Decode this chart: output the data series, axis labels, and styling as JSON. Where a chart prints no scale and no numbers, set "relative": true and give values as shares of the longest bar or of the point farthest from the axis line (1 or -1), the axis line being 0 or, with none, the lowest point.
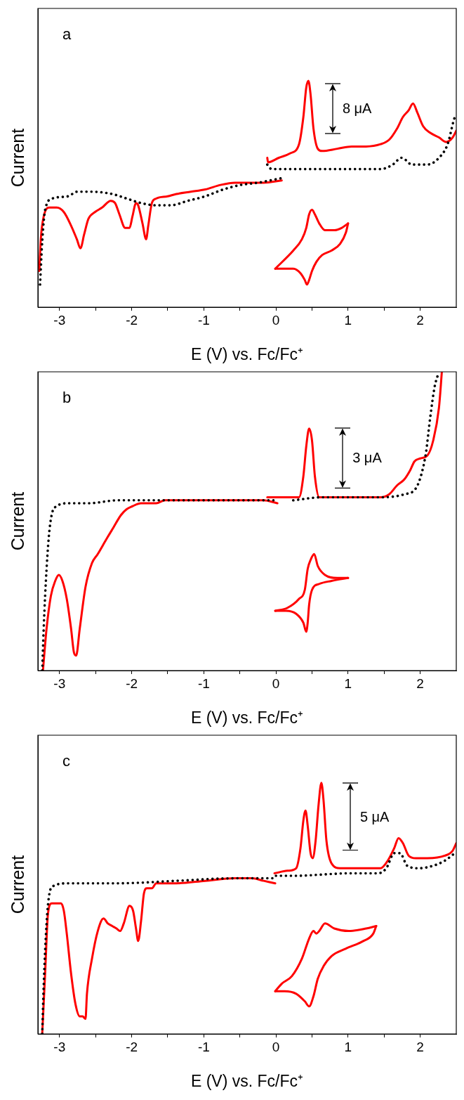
{
  "chart_data": [
    {
      "type": "line",
      "title": "a",
      "xlabel": "E (V) vs. Fc/Fc⁺",
      "ylabel": "Current",
      "relative": true,
      "marker": "none",
      "xlim": [
        -3.3,
        2.5
      ],
      "xticks": [
        -3,
        {
          "value": -2.5,
          "label": null
        },
        -2,
        {
          "value": -1.5,
          "label": null
        },
        -1,
        {
          "value": -0.5,
          "label": null
        },
        0,
        {
          "value": 0.5,
          "label": null
        },
        1,
        {
          "value": 1.5,
          "label": null
        },
        2
      ],
      "annotations": [
        "8 μA"
      ],
      "series": [
        {
          "color": "#000000",
          "line_style": "dotted",
          "x": [
            -3.27,
            -3.24,
            -3.2,
            -3.1,
            -2.88,
            -2.76,
            -2.55,
            -2.27,
            -2.07,
            -1.87,
            -1.66,
            -1.46,
            -1.22,
            -0.98,
            -0.73,
            -0.49,
            -0.25,
            0.08
          ],
          "values": [
            0.1,
            0.29,
            0.43,
            0.48,
            0.49,
            0.51,
            0.51,
            0.5,
            0.48,
            0.46,
            0.45,
            0.45,
            0.47,
            0.49,
            0.52,
            0.54,
            0.55,
            0.57
          ]
        },
        {
          "color": "#000000",
          "line_style": "dotted",
          "x": [
            -0.12,
            -0.06,
            0.24,
            0.64,
            1.05,
            1.45,
            1.62,
            1.74,
            1.8,
            1.88,
            2.1,
            2.26,
            2.38,
            2.46,
            2.49
          ],
          "values": [
            0.63,
            0.61,
            0.61,
            0.61,
            0.61,
            0.61,
            0.63,
            0.66,
            0.65,
            0.63,
            0.63,
            0.66,
            0.72,
            0.82,
            0.85
          ]
        },
        {
          "color": "#ff0000",
          "line_style": "solid",
          "x": [
            -3.28,
            -3.26,
            -3.22,
            -3.14,
            -3.04,
            -2.94,
            -2.84,
            -2.76,
            -2.71,
            -2.66,
            -2.6,
            -2.51,
            -2.41,
            -2.29,
            -2.23,
            -2.17,
            -2.09,
            -2.03,
            -1.99,
            -1.94,
            -1.91,
            -1.85,
            -1.8,
            -1.77,
            -1.72,
            -1.66,
            -1.5,
            -1.38,
            -1.18,
            -0.98,
            -0.77,
            -0.57,
            -0.37,
            -0.17,
            0.08
          ],
          "values": [
            0.16,
            0.3,
            0.4,
            0.44,
            0.44,
            0.42,
            0.36,
            0.3,
            0.26,
            0.32,
            0.39,
            0.42,
            0.44,
            0.47,
            0.46,
            0.41,
            0.35,
            0.35,
            0.4,
            0.46,
            0.45,
            0.37,
            0.3,
            0.36,
            0.46,
            0.48,
            0.49,
            0.5,
            0.51,
            0.52,
            0.54,
            0.55,
            0.55,
            0.55,
            0.56
          ]
        },
        {
          "color": "#ff0000",
          "line_style": "solid",
          "x": [
            -0.12,
            -0.11,
            0.04,
            0.2,
            0.32,
            0.38,
            0.42,
            0.45,
            0.48,
            0.52,
            0.58,
            0.64,
            0.85,
            1.05,
            1.25,
            1.45,
            1.57,
            1.68,
            1.76,
            1.84,
            1.9,
            1.96,
            2.04,
            2.14,
            2.26,
            2.36,
            2.45,
            2.5
          ],
          "values": [
            0.66,
            0.64,
            0.66,
            0.68,
            0.72,
            0.84,
            0.97,
            1,
            0.94,
            0.79,
            0.7,
            0.69,
            0.7,
            0.71,
            0.71,
            0.72,
            0.74,
            0.79,
            0.84,
            0.87,
            0.9,
            0.86,
            0.8,
            0.77,
            0.75,
            0.73,
            0.75,
            0.78
          ]
        },
        {
          "color": "#ff0000",
          "line_style": "solid",
          "x": [
            -0.01,
            0.24,
            0.36,
            0.42,
            0.46,
            0.5,
            0.54,
            0.6,
            0.68,
            0.81,
            0.91,
            1
          ],
          "values": [
            0.17,
            0.25,
            0.3,
            0.35,
            0.41,
            0.43,
            0.41,
            0.37,
            0.34,
            0.34,
            0.35,
            0.37
          ]
        },
        {
          "color": "#ff0000",
          "line_style": "solid",
          "x": [
            -0.01,
            0.12,
            0.24,
            0.34,
            0.4,
            0.43,
            0.46,
            0.5,
            0.56,
            0.64,
            0.77,
            0.89,
            0.97,
            1
          ],
          "values": [
            0.17,
            0.17,
            0.17,
            0.15,
            0.12,
            0.1,
            0.12,
            0.16,
            0.2,
            0.23,
            0.25,
            0.28,
            0.33,
            0.37
          ]
        }
      ]
    },
    {
      "type": "line",
      "title": "b",
      "xlabel": "E (V) vs. Fc/Fc⁺",
      "ylabel": "Current",
      "relative": true,
      "marker": "none",
      "xlim": [
        -3.3,
        2.5
      ],
      "xticks": [
        -3,
        {
          "value": -2.5,
          "label": null
        },
        -2,
        {
          "value": -1.5,
          "label": null
        },
        -1,
        {
          "value": -0.5,
          "label": null
        },
        0,
        {
          "value": 0.5,
          "label": null
        },
        1,
        {
          "value": 1.5,
          "label": null
        },
        2
      ],
      "annotations": [
        "3 μA"
      ],
      "series": [
        {
          "color": "#000000",
          "line_style": "dotted",
          "x": [
            -3.24,
            -3.22,
            -3.18,
            -3.14,
            -3.1,
            -3.04,
            -2.88,
            -2.6,
            -2.19,
            -1.79,
            -0.98,
            -0.17,
            0
          ],
          "values": [
            0,
            0.14,
            0.34,
            0.47,
            0.53,
            0.55,
            0.56,
            0.56,
            0.57,
            0.57,
            0.57,
            0.57,
            0.57
          ]
        },
        {
          "color": "#000000",
          "line_style": "dotted",
          "x": [
            0.24,
            0.64,
            1.45,
            1.78,
            1.94,
            2.02,
            2.08,
            2.14,
            2.2,
            2.26
          ],
          "values": [
            0.57,
            0.58,
            0.58,
            0.59,
            0.61,
            0.66,
            0.73,
            0.85,
            0.95,
            1
          ]
        },
        {
          "color": "#ff0000",
          "line_style": "solid",
          "x": [
            -3.23,
            -3.18,
            -3.12,
            -3.06,
            -3.01,
            -2.96,
            -2.9,
            -2.84,
            -2.8,
            -2.77,
            -2.72,
            -2.64,
            -2.55,
            -2.47,
            -2.35,
            -2.25,
            -2.15,
            -2.07,
            -1.99,
            -1.87,
            -1.74,
            -1.7,
            -1.66,
            -1.54,
            -0.98,
            -0.57,
            -0.17,
            0.02
          ],
          "values": [
            0,
            0.14,
            0.25,
            0.3,
            0.32,
            0.3,
            0.24,
            0.14,
            0.06,
            0.05,
            0.14,
            0.28,
            0.36,
            0.39,
            0.44,
            0.48,
            0.52,
            0.54,
            0.55,
            0.56,
            0.56,
            0.56,
            0.56,
            0.57,
            0.57,
            0.57,
            0.57,
            0.56
          ]
        },
        {
          "color": "#ff0000",
          "line_style": "solid",
          "x": [
            -0.12,
            0.04,
            0.2,
            0.32,
            0.38,
            0.42,
            0.46,
            0.5,
            0.54,
            0.6,
            0.64,
            1.05,
            1.45,
            1.57,
            1.68,
            1.78,
            1.86,
            1.92,
            2,
            2.1,
            2.18,
            2.26,
            2.3
          ],
          "values": [
            0.58,
            0.58,
            0.58,
            0.58,
            0.65,
            0.75,
            0.81,
            0.77,
            0.65,
            0.58,
            0.58,
            0.58,
            0.58,
            0.59,
            0.62,
            0.64,
            0.67,
            0.7,
            0.71,
            0.72,
            0.77,
            0.88,
            1
          ]
        },
        {
          "color": "#ff0000",
          "line_style": "solid",
          "x": [
            -0.01,
            0.16,
            0.32,
            0.4,
            0.44,
            0.48,
            0.53,
            0.58,
            0.68,
            0.85,
            1
          ],
          "values": [
            0.2,
            0.21,
            0.24,
            0.27,
            0.34,
            0.37,
            0.39,
            0.35,
            0.32,
            0.31,
            0.31
          ]
        },
        {
          "color": "#ff0000",
          "line_style": "solid",
          "x": [
            -0.01,
            0.14,
            0.28,
            0.38,
            0.42,
            0.44,
            0.46,
            0.5,
            0.6,
            0.77,
            1
          ],
          "values": [
            0.2,
            0.2,
            0.19,
            0.16,
            0.13,
            0.16,
            0.22,
            0.27,
            0.29,
            0.3,
            0.31
          ]
        }
      ]
    },
    {
      "type": "line",
      "title": "c",
      "xlabel": "E (V) vs. Fc/Fc⁺",
      "ylabel": "Current",
      "relative": true,
      "marker": "none",
      "xlim": [
        -3.3,
        2.5
      ],
      "xticks": [
        -3,
        {
          "value": -2.5,
          "label": null
        },
        -2,
        {
          "value": -1.5,
          "label": null
        },
        -1,
        {
          "value": -0.5,
          "label": null
        },
        0,
        {
          "value": 0.5,
          "label": null
        },
        1,
        {
          "value": 1.5,
          "label": null
        },
        2
      ],
      "annotations": [
        "5 μA"
      ],
      "series": [
        {
          "color": "#000000",
          "line_style": "dotted",
          "x": [
            -3.24,
            -3.22,
            -3.18,
            -3.14,
            -3.08,
            -2.88,
            -2.19,
            -1.38,
            -0.57,
            -0.02
          ],
          "values": [
            0,
            0.19,
            0.44,
            0.56,
            0.59,
            0.6,
            0.6,
            0.61,
            0.62,
            0.62
          ]
        },
        {
          "color": "#000000",
          "line_style": "dotted",
          "x": [
            0,
            0.24,
            1.05,
            1.42,
            1.53,
            1.64,
            1.72,
            1.82,
            1.98,
            2.18,
            2.34,
            2.48
          ],
          "values": [
            0.63,
            0.63,
            0.64,
            0.64,
            0.66,
            0.72,
            0.72,
            0.67,
            0.66,
            0.67,
            0.69,
            0.72
          ]
        },
        {
          "color": "#ff0000",
          "line_style": "solid",
          "x": [
            -3.24,
            -3.2,
            -3.16,
            -3.11,
            -2.98,
            -2.94,
            -2.9,
            -2.84,
            -2.78,
            -2.72,
            -2.68,
            -2.64,
            -2.62,
            -2.55,
            -2.47,
            -2.39,
            -2.33,
            -2.27,
            -2.21,
            -2.16,
            -2.11,
            -2.03,
            -1.98,
            -1.94,
            -1.91,
            -1.87,
            -1.83,
            -1.79,
            -1.72,
            -1.66,
            -1.38,
            -0.98,
            -0.57,
            -0.33,
            -0.17,
            -0.01
          ],
          "values": [
            0,
            0.24,
            0.48,
            0.52,
            0.52,
            0.49,
            0.4,
            0.24,
            0.12,
            0.07,
            0.07,
            0.06,
            0.16,
            0.3,
            0.41,
            0.46,
            0.44,
            0.43,
            0.42,
            0.41,
            0.44,
            0.51,
            0.49,
            0.42,
            0.37,
            0.45,
            0.56,
            0.58,
            0.58,
            0.6,
            0.6,
            0.61,
            0.62,
            0.62,
            0.61,
            0.6
          ]
        },
        {
          "color": "#ff0000",
          "line_style": "solid",
          "x": [
            -0.02,
            0.16,
            0.28,
            0.34,
            0.38,
            0.41,
            0.44,
            0.48,
            0.51,
            0.55,
            0.59,
            0.63,
            0.66,
            0.7,
            0.77,
            0.89,
            1.17,
            1.45,
            1.55,
            1.64,
            1.7,
            1.76,
            1.84,
            1.94,
            2.1,
            2.34,
            2.45,
            2.5
          ],
          "values": [
            0.64,
            0.65,
            0.66,
            0.74,
            0.85,
            0.89,
            0.83,
            0.72,
            0.7,
            0.77,
            0.91,
            1,
            0.93,
            0.77,
            0.68,
            0.66,
            0.66,
            0.66,
            0.69,
            0.74,
            0.78,
            0.76,
            0.71,
            0.7,
            0.7,
            0.71,
            0.73,
            0.76
          ]
        },
        {
          "color": "#ff0000",
          "line_style": "solid",
          "x": [
            -0.01,
            0.08,
            0.22,
            0.36,
            0.46,
            0.52,
            0.56,
            0.6,
            0.68,
            0.81,
            1.01,
            1.25,
            1.39
          ],
          "values": [
            0.17,
            0.2,
            0.23,
            0.3,
            0.38,
            0.41,
            0.4,
            0.41,
            0.44,
            0.42,
            0.41,
            0.42,
            0.43
          ]
        },
        {
          "color": "#ff0000",
          "line_style": "solid",
          "x": [
            -0.01,
            0.12,
            0.28,
            0.4,
            0.46,
            0.52,
            0.58,
            0.66,
            0.77,
            0.97,
            1.21,
            1.35,
            1.39
          ],
          "values": [
            0.17,
            0.17,
            0.16,
            0.13,
            0.11,
            0.15,
            0.22,
            0.27,
            0.31,
            0.34,
            0.37,
            0.4,
            0.43
          ]
        }
      ]
    }
  ]
}
